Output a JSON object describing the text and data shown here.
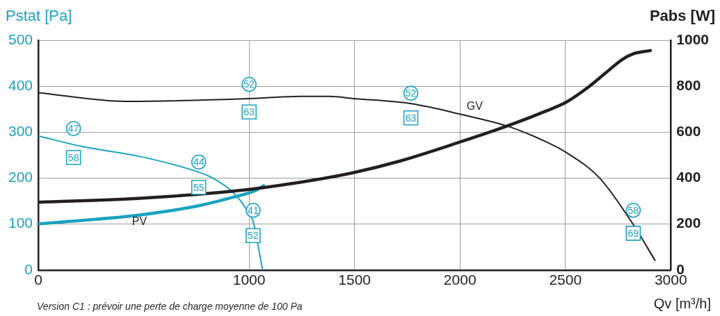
{
  "chart_data": {
    "type": "line",
    "xlabel": "Qv [m³/h]",
    "ylabel": "Pstat [Pa]",
    "y2label": "Pabs [W]",
    "xlim": [
      0,
      3000
    ],
    "xticks": [
      0,
      1000,
      1500,
      2000,
      2500,
      3000
    ],
    "ylim": [
      0,
      500
    ],
    "yticks": [
      0,
      100,
      200,
      300,
      400,
      500
    ],
    "y2lim": [
      0,
      1000
    ],
    "y2ticks": [
      0,
      200,
      400,
      600,
      800,
      1000
    ],
    "grid": true,
    "legend": false,
    "marker": "none",
    "line_style": "solid",
    "series": [
      {
        "color": "#231f20",
        "x": [
          0,
          417,
          1000,
          1242,
          1381,
          1500,
          1769,
          2003,
          2233,
          2408,
          2503,
          2661,
          2822,
          2925
        ],
        "values": [
          386,
          367,
          373,
          378,
          378,
          373,
          362,
          339,
          312,
          279,
          256,
          201,
          99,
          21
        ]
      },
      {
        "color": "#231f20",
        "axis": "y2",
        "x": [
          0,
          483,
          1000,
          1297,
          1500,
          1714,
          2003,
          2233,
          2408,
          2503,
          2603,
          2686,
          2769,
          2825,
          2903
        ],
        "values": [
          295,
          312,
          351,
          390,
          425,
          474,
          558,
          630,
          692,
          730,
          792,
          854,
          916,
          942,
          955
        ]
      },
      {
        "color": "#1ba3c0",
        "x": [
          0,
          206,
          483,
          761,
          828,
          928,
          983,
          1022,
          1042,
          1064
        ],
        "values": [
          292,
          269,
          247,
          213,
          200,
          167,
          135,
          101,
          54,
          0
        ]
      },
      {
        "color": "#1ba3c0",
        "axis": "y2",
        "x": [
          0,
          483,
          761,
          928,
          1025,
          1069
        ],
        "values": [
          201,
          240,
          280,
          318,
          344,
          367
        ]
      }
    ],
    "annotations": [
      {
        "text": "47",
        "x": 167,
        "y": 308
      },
      {
        "text": "58",
        "x": 167,
        "y": 245
      },
      {
        "text": "44",
        "x": 761,
        "y": 235
      },
      {
        "text": "55",
        "x": 761,
        "y": 180
      },
      {
        "text": "41",
        "x": 1019,
        "y": 130
      },
      {
        "text": "52",
        "x": 1019,
        "y": 75
      },
      {
        "text": "52",
        "x": 1000,
        "y": 404
      },
      {
        "text": "63",
        "x": 1000,
        "y": 344
      },
      {
        "text": "52",
        "x": 1767,
        "y": 385
      },
      {
        "text": "63",
        "x": 1767,
        "y": 331
      },
      {
        "text": "58",
        "x": 2822,
        "y": 130
      },
      {
        "text": "69",
        "x": 2822,
        "y": 80
      },
      "GV",
      "PV",
      "Version C1 : prévoir une perte de charge moyenne de 100 Pa"
    ]
  }
}
